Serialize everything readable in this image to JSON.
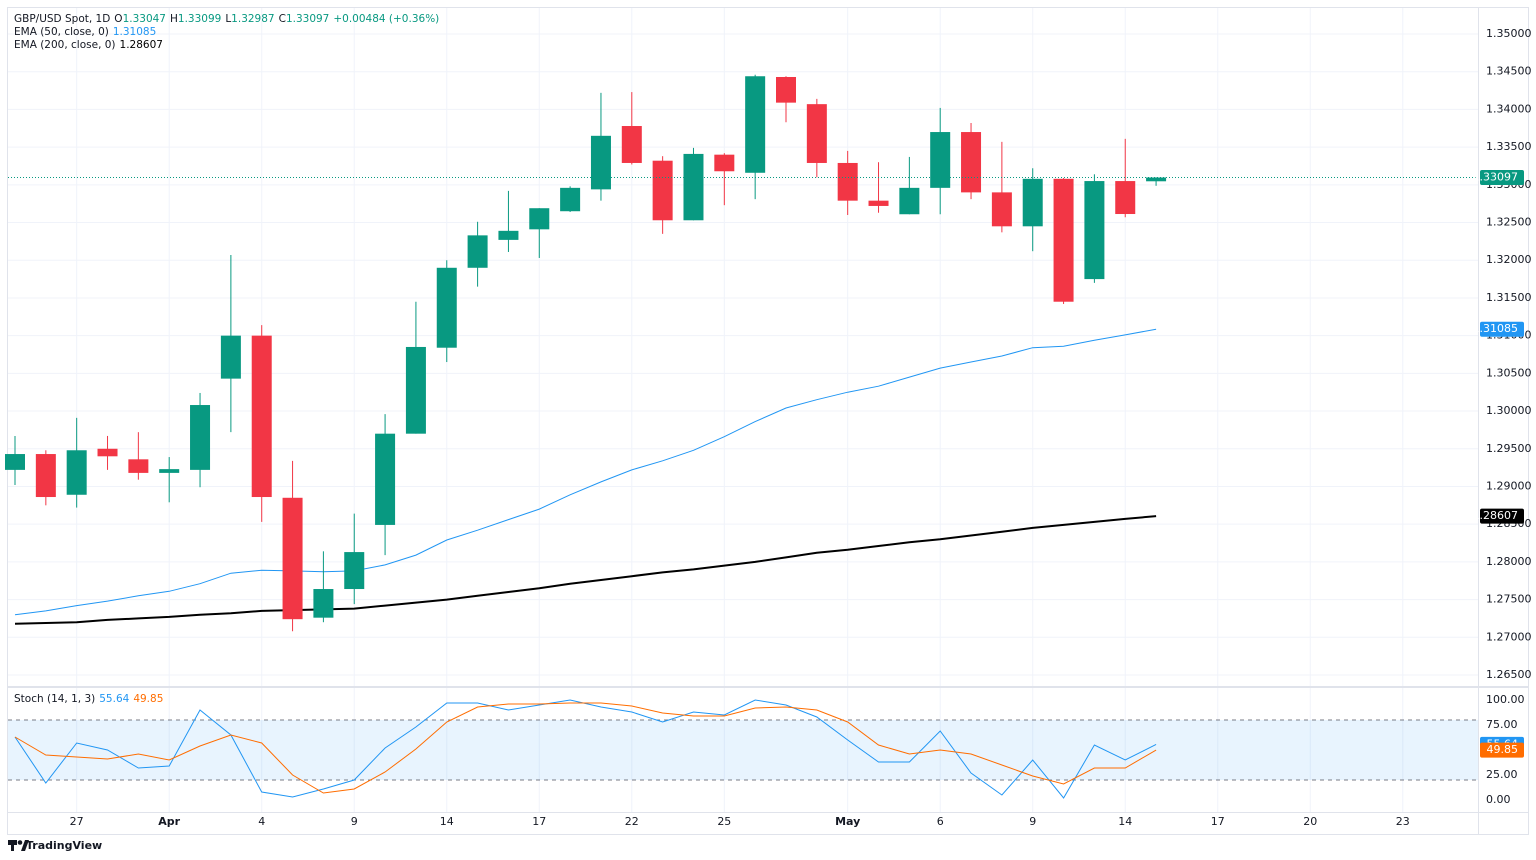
{
  "chart_data": [
    {
      "type": "candlestick",
      "symbol": "GBP/USD Spot, 1D",
      "ohlc_prefixes": [
        "O",
        "H",
        "L",
        "C"
      ],
      "change": "+0.00484 (+0.36%)",
      "categories": [
        null,
        null,
        "27",
        null,
        null,
        "Apr",
        null,
        null,
        "4",
        null,
        null,
        "9",
        null,
        null,
        "14",
        null,
        null,
        "17",
        null,
        null,
        "22",
        null,
        null,
        "25",
        null,
        null,
        null,
        "May",
        null,
        null,
        "6",
        null,
        null,
        "9",
        null,
        null,
        "14",
        null,
        null,
        "17",
        null,
        null,
        "20",
        null,
        null,
        "23",
        null
      ],
      "open": [
        1.2922,
        1.2943,
        1.2889,
        1.295,
        1.2936,
        1.2918,
        1.2922,
        1.3043,
        1.31,
        1.2885,
        1.2726,
        1.2764,
        1.2849,
        1.297,
        1.3084,
        1.319,
        1.3227,
        1.3241,
        1.3265,
        1.3294,
        1.3378,
        1.3332,
        1.3253,
        1.334,
        1.3316,
        1.3443,
        1.3407,
        1.3329,
        1.3279,
        1.3261,
        1.3296,
        1.337,
        1.329,
        1.3245,
        1.3308,
        1.3175,
        1.3305,
        1.33047,
        null,
        null,
        null,
        null,
        null,
        null,
        null,
        null,
        null
      ],
      "high": [
        1.2967,
        1.2948,
        1.2991,
        1.2967,
        1.2972,
        1.2939,
        1.3024,
        1.3207,
        1.3114,
        1.2934,
        1.2814,
        1.2864,
        1.2996,
        1.3145,
        1.32,
        1.3251,
        1.3292,
        1.3269,
        1.3298,
        1.3422,
        1.3423,
        1.3338,
        1.3349,
        1.3342,
        1.3446,
        1.3444,
        1.3414,
        1.3345,
        1.333,
        1.3337,
        1.3402,
        1.3382,
        1.3357,
        1.3322,
        1.3309,
        1.3314,
        1.3361,
        1.33099,
        null,
        null,
        null,
        null,
        null,
        null,
        null,
        null,
        null
      ],
      "low": [
        1.2902,
        1.2875,
        1.2872,
        1.2922,
        1.2909,
        1.2879,
        1.2899,
        1.2972,
        1.2853,
        1.2708,
        1.272,
        1.2744,
        1.2809,
        1.297,
        1.3065,
        1.3165,
        1.3211,
        1.3203,
        1.3264,
        1.3279,
        1.3327,
        1.3235,
        1.3253,
        1.3273,
        1.3281,
        1.3383,
        1.331,
        1.326,
        1.3263,
        1.3261,
        1.3261,
        1.3281,
        1.3237,
        1.3212,
        1.3142,
        1.317,
        1.3257,
        1.32987,
        null,
        null,
        null,
        null,
        null,
        null,
        null,
        null,
        null
      ],
      "close": [
        1.2943,
        1.2886,
        1.2948,
        1.294,
        1.2918,
        1.2923,
        1.3008,
        1.31,
        1.2886,
        1.2724,
        1.2764,
        1.2813,
        1.297,
        1.3085,
        1.319,
        1.3233,
        1.3239,
        1.3269,
        1.3296,
        1.3365,
        1.3329,
        1.3253,
        1.3341,
        1.3318,
        1.3444,
        1.3409,
        1.3329,
        1.3279,
        1.3272,
        1.3296,
        1.337,
        1.329,
        1.3245,
        1.3308,
        1.3145,
        1.3305,
        1.32613,
        1.33097,
        null,
        null,
        null,
        null,
        null,
        null,
        null,
        null,
        null
      ],
      "up_color": "#089981",
      "down_color": "#f23645",
      "series": [
        {
          "name": "EMA (50, close, 0)",
          "color": "#2196f3",
          "values": [
            1.273,
            1.2735,
            1.2742,
            1.2748,
            1.2755,
            1.2761,
            1.2771,
            1.2785,
            1.2789,
            1.2788,
            1.2787,
            1.2788,
            1.2796,
            1.2809,
            1.2829,
            1.2842,
            1.2856,
            1.287,
            1.2889,
            1.2906,
            1.2922,
            1.2934,
            1.2948,
            1.2966,
            1.2986,
            1.3004,
            1.3015,
            1.3025,
            1.3033,
            1.3045,
            1.3057,
            1.3065,
            1.3073,
            1.3084,
            1.3086,
            1.3094,
            1.3101,
            1.31085,
            null,
            null,
            null,
            null,
            null,
            null,
            null,
            null,
            null
          ]
        },
        {
          "name": "EMA (200, close, 0)",
          "color": "#000000",
          "values": [
            1.2718,
            1.2719,
            1.272,
            1.2723,
            1.2725,
            1.2727,
            1.273,
            1.2732,
            1.2735,
            1.2736,
            1.2737,
            1.2738,
            1.2742,
            1.2746,
            1.275,
            1.2755,
            1.276,
            1.2765,
            1.2771,
            1.2776,
            1.2781,
            1.2786,
            1.279,
            1.2795,
            1.28,
            1.2806,
            1.2812,
            1.2816,
            1.2821,
            1.2826,
            1.283,
            1.2835,
            1.284,
            1.2845,
            1.2849,
            1.2853,
            1.2857,
            1.28607,
            null,
            null,
            null,
            null,
            null,
            null,
            null,
            null,
            null
          ]
        }
      ],
      "ylim": [
        1.26354,
        1.35345
      ],
      "yticks": [
        {
          "value": 1.265,
          "label": "1.26500"
        },
        {
          "value": 1.27,
          "label": "1.27000"
        },
        {
          "value": 1.275,
          "label": "1.27500"
        },
        {
          "value": 1.28,
          "label": "1.28000"
        },
        {
          "value": 1.285,
          "label": "1.28500"
        },
        {
          "value": 1.29,
          "label": "1.29000"
        },
        {
          "value": 1.295,
          "label": "1.29500"
        },
        {
          "value": 1.3,
          "label": "1.30000"
        },
        {
          "value": 1.305,
          "label": "1.30500"
        },
        {
          "value": 1.31,
          "label": "1.31000"
        },
        {
          "value": 1.315,
          "label": "1.31500"
        },
        {
          "value": 1.32,
          "label": "1.32000"
        },
        {
          "value": 1.325,
          "label": "1.32500"
        },
        {
          "value": 1.33,
          "label": "1.33000"
        },
        {
          "value": 1.335,
          "label": "1.33500"
        },
        {
          "value": 1.34,
          "label": "1.34000"
        },
        {
          "value": 1.345,
          "label": "1.34500"
        },
        {
          "value": 1.35,
          "label": "1.35000"
        }
      ],
      "grid": true
    },
    {
      "type": "line",
      "title": "Stoch (14, 1, 3)",
      "series": [
        {
          "color": "#2196f3",
          "values": [
            63,
            17,
            57,
            50,
            32,
            34,
            90,
            65,
            8,
            3,
            11,
            20,
            52,
            73,
            97,
            97,
            90,
            95,
            100,
            93,
            88,
            78,
            88,
            85,
            100,
            95,
            83,
            60,
            38,
            38,
            69,
            27,
            5,
            40,
            2,
            55,
            40,
            55.64,
            null,
            null,
            null,
            null,
            null,
            null,
            null,
            null,
            null
          ]
        },
        {
          "color": "#ff6d00",
          "values": [
            63,
            45,
            43,
            41,
            46,
            40,
            54,
            65,
            57,
            25,
            7,
            11,
            28,
            51,
            78,
            93,
            96,
            96,
            97,
            97,
            94,
            87,
            84,
            84,
            92,
            93,
            90,
            78,
            55,
            46,
            50,
            46,
            35,
            24,
            16,
            32,
            32,
            49.85,
            null,
            null,
            null,
            null,
            null,
            null,
            null,
            null,
            null
          ]
        }
      ],
      "bands": [
        20,
        80
      ],
      "ylim": [
        -12,
        112
      ],
      "yticks": [
        {
          "value": 0,
          "label": "0.00"
        },
        {
          "value": 25,
          "label": "25.00"
        },
        {
          "value": 75,
          "label": "75.00"
        },
        {
          "value": 100,
          "label": "100.00"
        }
      ]
    }
  ],
  "logo": "TradingView"
}
